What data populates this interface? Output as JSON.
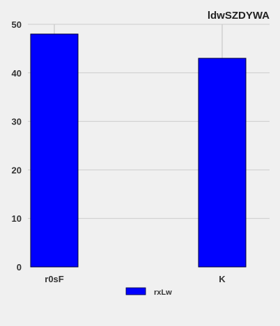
{
  "chart_data": {
    "type": "bar",
    "title": "ldwSZDYWA",
    "xlabel": "",
    "ylabel": "",
    "categories": [
      "r0sF",
      "K"
    ],
    "series": [
      {
        "name": "rxLw",
        "values": [
          48,
          43
        ],
        "error": [
          2,
          7
        ],
        "color": "#0000ff"
      }
    ],
    "ylim": [
      0,
      50
    ],
    "yticks": [
      0,
      10,
      20,
      30,
      40,
      50
    ],
    "grid": true,
    "legend_position": "bottom-center"
  },
  "colors": {
    "background": "#f0f0f0",
    "grid": "#cbcbcb",
    "bar_edge": "#000033",
    "error_bar": "#c8c8c8"
  }
}
